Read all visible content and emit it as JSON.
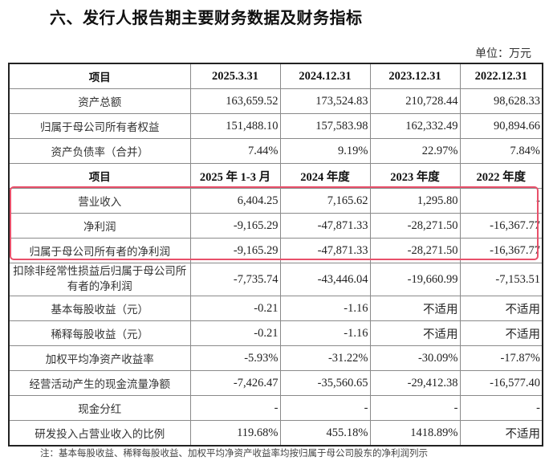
{
  "title": "六、发行人报告期主要财务数据及财务指标",
  "unit": "单位：万元",
  "table": {
    "header1": [
      "项目",
      "2025.3.31",
      "2024.12.31",
      "2023.12.31",
      "2022.12.31"
    ],
    "rows1": [
      [
        "资产总额",
        "163,659.52",
        "173,524.83",
        "210,728.44",
        "98,628.33"
      ],
      [
        "归属于母公司所有者权益",
        "151,488.10",
        "157,583.98",
        "162,332.49",
        "90,894.66"
      ],
      [
        "资产负债率（合并）",
        "7.44%",
        "9.19%",
        "22.97%",
        "7.84%"
      ]
    ],
    "header2": [
      "项目",
      "2025 年 1-3 月",
      "2024 年度",
      "2023 年度",
      "2022 年度"
    ],
    "rows2": [
      [
        "营业收入",
        "6,404.25",
        "7,165.62",
        "1,295.80",
        "-"
      ],
      [
        "净利润",
        "-9,165.29",
        "-47,871.33",
        "-28,271.50",
        "-16,367.77"
      ],
      [
        "归属于母公司所有者的净利润",
        "-9,165.29",
        "-47,871.33",
        "-28,271.50",
        "-16,367.77"
      ],
      [
        "扣除非经常性损益后归属于母公司所有者的净利润",
        "-7,735.74",
        "-43,446.04",
        "-19,660.99",
        "-7,153.51"
      ],
      [
        "基本每股收益（元）",
        "-0.21",
        "-1.16",
        "不适用",
        "不适用"
      ],
      [
        "稀释每股收益（元）",
        "-0.21",
        "-1.16",
        "不适用",
        "不适用"
      ],
      [
        "加权平均净资产收益率",
        "-5.93%",
        "-31.22%",
        "-30.09%",
        "-17.87%"
      ],
      [
        "经营活动产生的现金流量净额",
        "-7,426.47",
        "-35,560.65",
        "-29,412.38",
        "-16,577.40"
      ],
      [
        "现金分红",
        "-",
        "-",
        "-",
        "-"
      ],
      [
        "研发投入占营业收入的比例",
        "119.68%",
        "455.18%",
        "1418.89%",
        "不适用"
      ]
    ]
  },
  "highlight_color": "#e8506a",
  "note": "注：基本每股收益、稀释每股收益、加权平均净资产收益率均按归属于母公司股东的净利润列示"
}
